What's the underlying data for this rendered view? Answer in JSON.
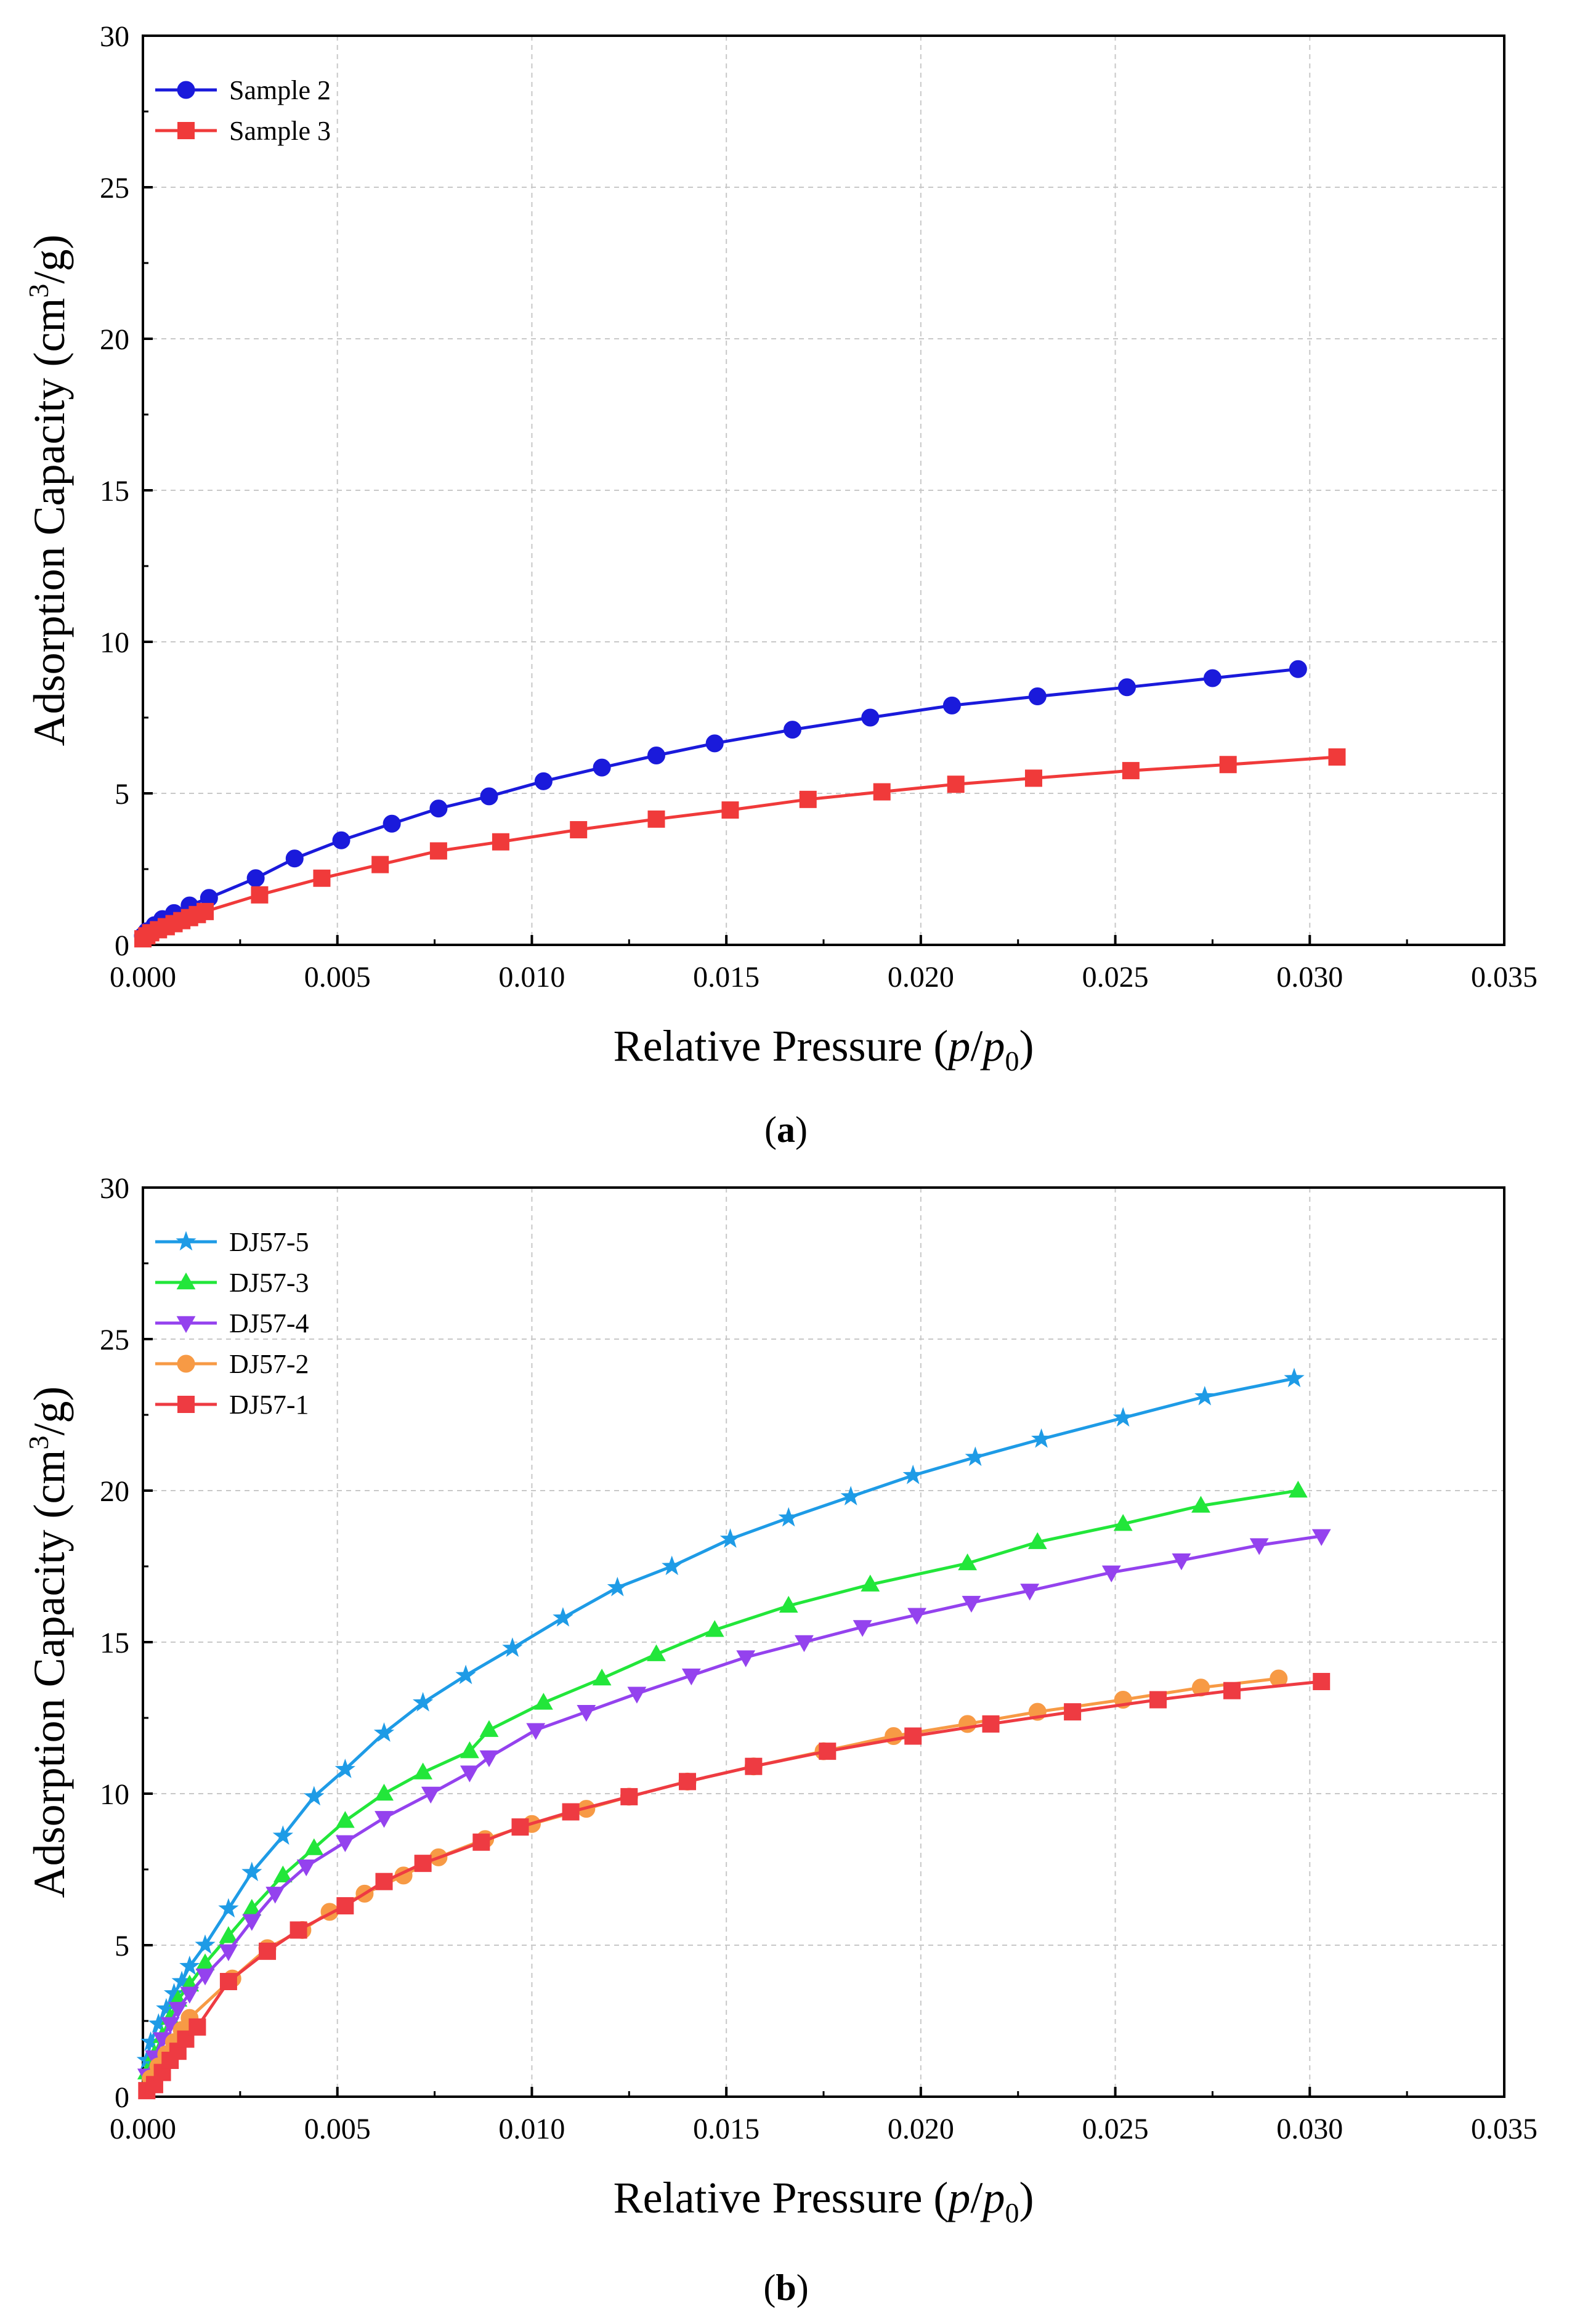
{
  "chart_data": [
    {
      "type": "line",
      "panel": "a",
      "caption": "a",
      "xlabel": "Relative Pressure",
      "xlabel_var": "p",
      "xlabel_var0": "p",
      "xlabel_sub": "0",
      "ylabel": "Adsorption Capacity (cm",
      "ylabel_sup": "3",
      "ylabel_end": "/g)",
      "xlim": [
        0,
        0.035
      ],
      "ylim": [
        0,
        30
      ],
      "xticks": [
        "0.000",
        "0.005",
        "0.010",
        "0.015",
        "0.020",
        "0.025",
        "0.030",
        "0.035"
      ],
      "yticks": [
        "0",
        "5",
        "10",
        "15",
        "20",
        "25",
        "30"
      ],
      "grid": true,
      "legend_position": "top-left",
      "series": [
        {
          "name": "Sample 2",
          "color": "#1a1adb",
          "marker": "circle",
          "x": [
            0.0,
            0.0001,
            0.0003,
            0.0005,
            0.0008,
            0.0012,
            0.0017,
            0.0029,
            0.0039,
            0.0051,
            0.0064,
            0.0076,
            0.0089,
            0.0103,
            0.0118,
            0.0132,
            0.0147,
            0.0167,
            0.0187,
            0.0208,
            0.023,
            0.0253,
            0.0275,
            0.0297
          ],
          "y": [
            0.3,
            0.45,
            0.65,
            0.85,
            1.05,
            1.3,
            1.55,
            2.2,
            2.85,
            3.45,
            4.0,
            4.5,
            4.9,
            5.4,
            5.85,
            6.25,
            6.65,
            7.1,
            7.5,
            7.9,
            8.2,
            8.5,
            8.8,
            9.1
          ]
        },
        {
          "name": "Sample 3",
          "color": "#f03a3a",
          "marker": "square",
          "x": [
            0.0,
            0.0001,
            0.0002,
            0.0004,
            0.0006,
            0.0008,
            0.001,
            0.0012,
            0.0014,
            0.0016,
            0.003,
            0.0046,
            0.0061,
            0.0076,
            0.0092,
            0.0112,
            0.0132,
            0.0151,
            0.0171,
            0.019,
            0.0209,
            0.0229,
            0.0254,
            0.0279,
            0.0307
          ],
          "y": [
            0.2,
            0.3,
            0.4,
            0.5,
            0.6,
            0.7,
            0.8,
            0.9,
            1.0,
            1.1,
            1.65,
            2.2,
            2.65,
            3.1,
            3.4,
            3.8,
            4.15,
            4.45,
            4.8,
            5.05,
            5.3,
            5.5,
            5.75,
            5.95,
            6.2
          ]
        }
      ]
    },
    {
      "type": "line",
      "panel": "b",
      "caption": "b",
      "xlabel": "Relative Pressure",
      "xlabel_var": "p",
      "xlabel_var0": "p",
      "xlabel_sub": "0",
      "ylabel": "Adsorption Capacity (cm",
      "ylabel_sup": "3",
      "ylabel_end": "/g)",
      "xlim": [
        0,
        0.035
      ],
      "ylim": [
        0,
        30
      ],
      "xticks": [
        "0.000",
        "0.005",
        "0.010",
        "0.015",
        "0.020",
        "0.025",
        "0.030",
        "0.035"
      ],
      "yticks": [
        "0",
        "5",
        "10",
        "15",
        "20",
        "25",
        "30"
      ],
      "grid": true,
      "legend_position": "top-left",
      "series": [
        {
          "name": "DJ57-5",
          "color": "#1e9be6",
          "marker": "star",
          "x": [
            0.0001,
            0.0002,
            0.0004,
            0.0006,
            0.0008,
            0.001,
            0.0012,
            0.0016,
            0.0022,
            0.0028,
            0.0036,
            0.0044,
            0.0052,
            0.0062,
            0.0072,
            0.0083,
            0.0095,
            0.0108,
            0.0122,
            0.0136,
            0.0151,
            0.0166,
            0.0182,
            0.0198,
            0.0214,
            0.0231,
            0.0252,
            0.0273,
            0.0296
          ],
          "y": [
            1.2,
            1.8,
            2.4,
            2.9,
            3.4,
            3.8,
            4.3,
            5.0,
            6.2,
            7.4,
            8.6,
            9.9,
            10.8,
            12.0,
            13.0,
            13.9,
            14.8,
            15.8,
            16.8,
            17.5,
            18.4,
            19.1,
            19.8,
            20.5,
            21.1,
            21.7,
            22.4,
            23.1,
            23.7
          ]
        },
        {
          "name": "DJ57-3",
          "color": "#22e63a",
          "marker": "triangle-up",
          "x": [
            0.0001,
            0.0003,
            0.0005,
            0.0007,
            0.0009,
            0.0012,
            0.0016,
            0.0022,
            0.0028,
            0.0036,
            0.0044,
            0.0052,
            0.0062,
            0.0072,
            0.0084,
            0.0089,
            0.0103,
            0.0118,
            0.0132,
            0.0147,
            0.0166,
            0.0187,
            0.0212,
            0.023,
            0.0252,
            0.0272,
            0.0297
          ],
          "y": [
            0.8,
            1.4,
            2.0,
            2.6,
            3.2,
            3.7,
            4.4,
            5.3,
            6.2,
            7.3,
            8.2,
            9.1,
            10.0,
            10.7,
            11.4,
            12.1,
            13.0,
            13.8,
            14.6,
            15.4,
            16.2,
            16.9,
            17.6,
            18.3,
            18.9,
            19.5,
            20.0
          ]
        },
        {
          "name": "DJ57-4",
          "color": "#9442ee",
          "marker": "triangle-down",
          "x": [
            0.0001,
            0.0003,
            0.0005,
            0.0007,
            0.0009,
            0.0012,
            0.0016,
            0.0022,
            0.0028,
            0.0034,
            0.0042,
            0.0052,
            0.0062,
            0.0074,
            0.0084,
            0.0089,
            0.0101,
            0.0114,
            0.0127,
            0.0141,
            0.0155,
            0.017,
            0.0185,
            0.0199,
            0.0213,
            0.0228,
            0.0249,
            0.0267,
            0.0287,
            0.0303
          ],
          "y": [
            0.7,
            1.3,
            1.9,
            2.4,
            2.9,
            3.4,
            4.0,
            4.8,
            5.8,
            6.7,
            7.6,
            8.4,
            9.2,
            10.0,
            10.7,
            11.2,
            12.1,
            12.7,
            13.3,
            13.9,
            14.5,
            15.0,
            15.5,
            15.9,
            16.3,
            16.7,
            17.3,
            17.7,
            18.2,
            18.5
          ]
        },
        {
          "name": "DJ57-2",
          "color": "#f79a45",
          "marker": "circle",
          "x": [
            0.0002,
            0.0004,
            0.0006,
            0.0008,
            0.001,
            0.0012,
            0.0023,
            0.0032,
            0.0041,
            0.0048,
            0.0057,
            0.0067,
            0.0076,
            0.0088,
            0.01,
            0.0114,
            0.0125,
            0.014,
            0.0157,
            0.0175,
            0.0193,
            0.0212,
            0.023,
            0.0252,
            0.0272,
            0.0292
          ],
          "y": [
            0.6,
            1.0,
            1.4,
            1.8,
            2.2,
            2.6,
            3.9,
            4.9,
            5.5,
            6.1,
            6.7,
            7.3,
            7.9,
            8.5,
            9.0,
            9.5,
            9.9,
            10.4,
            10.9,
            11.4,
            11.9,
            12.3,
            12.7,
            13.1,
            13.5,
            13.8
          ]
        },
        {
          "name": "DJ57-1",
          "color": "#ee3b42",
          "marker": "square",
          "x": [
            0.0001,
            0.0003,
            0.0005,
            0.0007,
            0.0009,
            0.0011,
            0.0014,
            0.0022,
            0.0032,
            0.004,
            0.0052,
            0.0062,
            0.0072,
            0.0087,
            0.0097,
            0.011,
            0.0125,
            0.014,
            0.0157,
            0.0176,
            0.0198,
            0.0218,
            0.0239,
            0.0261,
            0.028,
            0.0303
          ],
          "y": [
            0.2,
            0.4,
            0.8,
            1.2,
            1.5,
            1.9,
            2.3,
            3.8,
            4.8,
            5.5,
            6.3,
            7.1,
            7.7,
            8.4,
            8.9,
            9.4,
            9.9,
            10.4,
            10.9,
            11.4,
            11.9,
            12.3,
            12.7,
            13.1,
            13.4,
            13.7
          ]
        }
      ]
    }
  ]
}
